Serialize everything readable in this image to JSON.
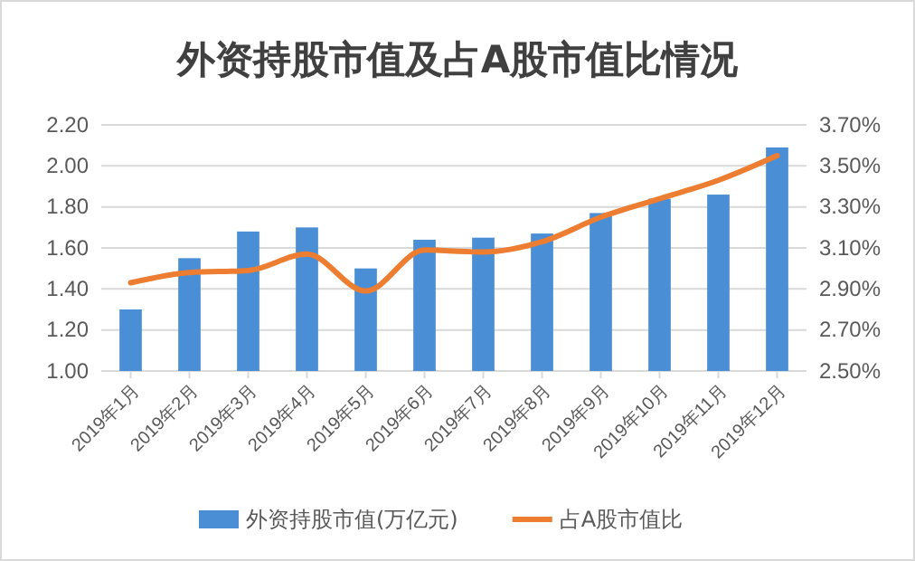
{
  "chart_data": {
    "type": "bar",
    "title": "外资持股市值及占A股市值比情况",
    "categories": [
      "2019年1月",
      "2019年2月",
      "2019年3月",
      "2019年4月",
      "2019年5月",
      "2019年6月",
      "2019年7月",
      "2019年8月",
      "2019年9月",
      "2019年10月",
      "2019年11月",
      "2019年12月"
    ],
    "series": [
      {
        "name": "外资持股市值(万亿元)",
        "color": "#4a8fd6",
        "values": [
          1.3,
          1.55,
          1.68,
          1.7,
          1.5,
          1.64,
          1.65,
          1.67,
          1.77,
          1.84,
          1.86,
          2.09
        ]
      },
      {
        "name": "占A股市值比",
        "type": "line",
        "axis": "y2",
        "color": "#ed7d31",
        "values": [
          2.93,
          2.98,
          2.99,
          3.07,
          2.89,
          3.09,
          3.08,
          3.13,
          3.25,
          3.34,
          3.43,
          3.55
        ]
      }
    ],
    "ylim": [
      1.0,
      2.2
    ],
    "yticks": [
      {
        "value": 1.0,
        "label": "1.00"
      },
      {
        "value": 1.2,
        "label": "1.20"
      },
      {
        "value": 1.4,
        "label": "1.40"
      },
      {
        "value": 1.6,
        "label": "1.60"
      },
      {
        "value": 1.8,
        "label": "1.80"
      },
      {
        "value": 2.0,
        "label": "2.00"
      },
      {
        "value": 2.2,
        "label": "2.20"
      }
    ],
    "y2lim": [
      2.5,
      3.7
    ],
    "y2ticks": [
      {
        "value": 2.5,
        "label": "2.50%"
      },
      {
        "value": 2.7,
        "label": "2.70%"
      },
      {
        "value": 2.9,
        "label": "2.90%"
      },
      {
        "value": 3.1,
        "label": "3.10%"
      },
      {
        "value": 3.3,
        "label": "3.30%"
      },
      {
        "value": 3.5,
        "label": "3.50%"
      },
      {
        "value": 3.7,
        "label": "3.70%"
      }
    ],
    "grid": "y",
    "legend": "bottom",
    "marker": "none",
    "line_style": "solid"
  }
}
